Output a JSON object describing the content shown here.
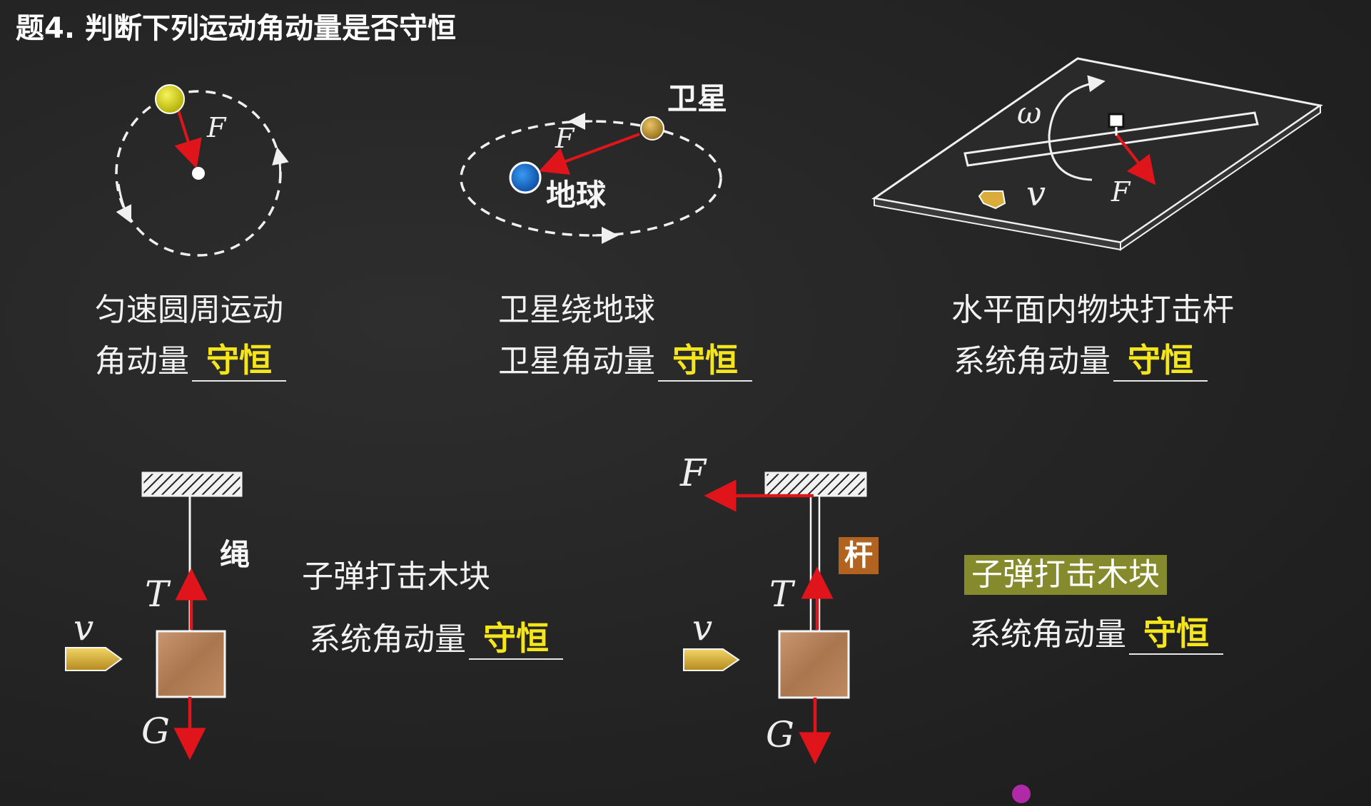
{
  "title": "题4. 判断下列运动角动量是否守恒",
  "panels": {
    "p1": {
      "force_label": "F",
      "caption": "匀速圆周运动",
      "question": "角动量",
      "answer": "守恒"
    },
    "p2": {
      "satellite_label": "卫星",
      "earth_label": "地球",
      "force_label": "F",
      "caption": "卫星绕地球",
      "question": "卫星角动量",
      "answer": "守恒"
    },
    "p3": {
      "omega_label": "ω",
      "v_label": "v",
      "force_label": "F",
      "caption": "水平面内物块打击杆",
      "question": "系统角动量",
      "answer": "守恒"
    },
    "p4": {
      "rope_label": "绳",
      "tension_label": "T",
      "v_label": "v",
      "gravity_label": "G",
      "caption": "子弹打击木块",
      "question": "系统角动量",
      "answer": "守恒"
    },
    "p5": {
      "force_label": "F",
      "rod_label": "杆",
      "tension_label": "T",
      "v_label": "v",
      "gravity_label": "G",
      "caption": "子弹打击木块",
      "question": "系统角动量",
      "answer": "守恒"
    }
  },
  "colors": {
    "arrow_red": "#e0141b",
    "answer_yellow": "#f5e51b",
    "earth_blue": "#1a6fd1",
    "ball_yellow": "#e3e01e",
    "satellite_gold": "#c9a03a",
    "wood": "#b5835a",
    "rod_tag": "#b2631f",
    "highlight_tag": "#858a2c"
  }
}
